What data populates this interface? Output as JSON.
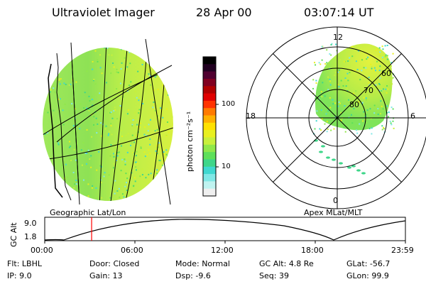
{
  "header": {
    "instrument": "Ultraviolet Imager",
    "date": "28 Apr 00",
    "time": "03:07:14 UT"
  },
  "colorbar": {
    "label": "photon cm⁻²s⁻¹",
    "ticks": [
      "100",
      "10"
    ],
    "colors": [
      "#efefef",
      "#bff3f0",
      "#80e8e6",
      "#40d8d0",
      "#3fd68a",
      "#5ee05a",
      "#90e84a",
      "#c8f03c",
      "#e8f020",
      "#ffe100",
      "#ffb000",
      "#ff7a00",
      "#ff3300",
      "#e00000",
      "#b00000",
      "#800020",
      "#500030",
      "#200020",
      "#000000"
    ]
  },
  "polar": {
    "mlt_labels": [
      "12",
      "18",
      "6",
      "0"
    ],
    "mlat_labels": [
      "60",
      "70",
      "80"
    ],
    "caption": "Apex MLat/MLT"
  },
  "earth": {
    "caption": "Geographic Lat/Lon"
  },
  "altitude_plot": {
    "ylabel": "GC Alt",
    "yticks": [
      "9.0",
      "1.8"
    ],
    "xticks": [
      "00:00",
      "06:00",
      "12:00",
      "18:00",
      "23:59"
    ],
    "marker_time_hours": 3.12,
    "marker_color": "#ff0000"
  },
  "footer": {
    "row1": [
      {
        "label": "Flt:",
        "value": "LBHL"
      },
      {
        "label": "Door:",
        "value": "Closed"
      },
      {
        "label": "Mode:",
        "value": "Normal"
      },
      {
        "label": "GC Alt:",
        "value": "4.8 Re"
      },
      {
        "label": "GLat:",
        "value": "-56.7"
      }
    ],
    "row2": [
      {
        "label": "IP:",
        "value": "9.0"
      },
      {
        "label": "Gain:",
        "value": "13"
      },
      {
        "label": "Dsp:",
        "value": "-9.6"
      },
      {
        "label": "Seq:",
        "value": "39"
      },
      {
        "label": "GLon:",
        "value": "99.9"
      }
    ]
  }
}
